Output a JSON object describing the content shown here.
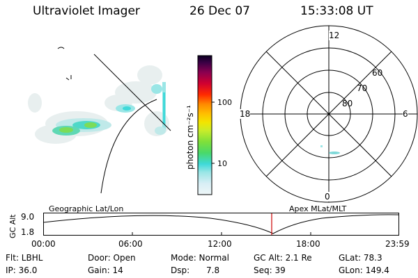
{
  "header": {
    "instrument": "Ultraviolet Imager",
    "date": "26 Dec 07",
    "time": "15:33:08 UT"
  },
  "colorbar": {
    "label": "photon cm⁻²s⁻¹",
    "ticks": [
      "100",
      "10"
    ],
    "colors": [
      "#d8eef5",
      "#9be6e6",
      "#3fd9d9",
      "#5ee36a",
      "#8ee23a",
      "#c8ec2a",
      "#f2e500",
      "#ffc000",
      "#ff8a00",
      "#ff2a00",
      "#cc0033",
      "#990055",
      "#5a005a",
      "#1a0033"
    ]
  },
  "polar_plot": {
    "mlt_labels": {
      "top": "12",
      "right": "6",
      "bottom": "0",
      "left": "18"
    },
    "lat_labels": [
      "60",
      "70",
      "80"
    ]
  },
  "map_labels": {
    "geographic": "Geographic Lat/Lon",
    "apex": "Apex MLat/MLT"
  },
  "altitude_plot": {
    "ylabel": "GC Alt",
    "yticks": [
      "9.0",
      "1.8"
    ],
    "xticks": [
      "00:00",
      "06:00",
      "12:00",
      "18:00",
      "23:59"
    ],
    "current_time_color": "#cc0000"
  },
  "info": {
    "row1": {
      "flt": "Flt: LBHL",
      "door": "Door: Open",
      "mode": "Mode: Normal",
      "gcalt": "GC Alt: 2.1 Re",
      "glat": "GLat: 78.3"
    },
    "row2": {
      "ip": "IP: 36.0",
      "gain": "Gain: 14",
      "dsp_label": "Dsp:",
      "dsp_value": "7.8",
      "seq": "Seq: 39",
      "glon": "GLon: 149.4"
    }
  }
}
